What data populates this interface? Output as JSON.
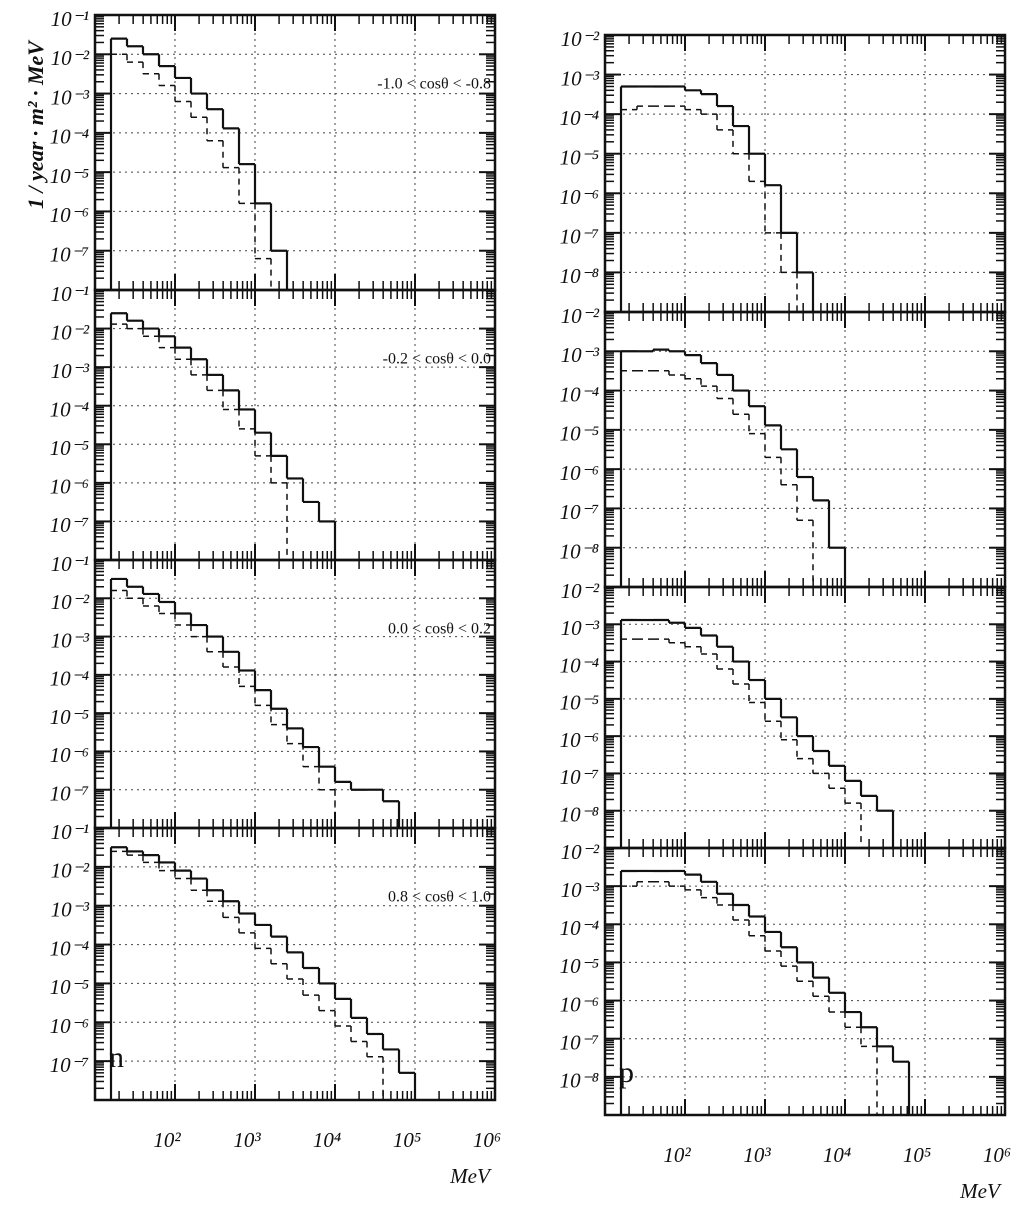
{
  "chart_data": [
    {
      "type": "histogram",
      "ylabel": "1 / year · m² · MeV",
      "annotation": "-1.0 < cosθ < -0.8",
      "log_x": true,
      "log_y": true,
      "grid": true,
      "show_xtick_labels": false,
      "xlim": [
        10,
        1000000
      ],
      "ylim": [
        1e-08,
        0.1
      ],
      "xticks": [
        100,
        1000,
        10000,
        100000,
        1000000
      ],
      "yticks": [
        {
          "value": 0.1,
          "label": "10⁻¹"
        },
        {
          "value": 0.01,
          "label": "10⁻²"
        },
        {
          "value": 0.001,
          "label": "10⁻³"
        },
        {
          "value": 0.0001,
          "label": "10⁻⁴"
        },
        {
          "value": 1e-05,
          "label": "10⁻⁵"
        },
        {
          "value": 1e-06,
          "label": "10⁻⁶"
        },
        {
          "value": 1e-07,
          "label": "10⁻⁷"
        }
      ],
      "bins": [
        15.85,
        25.12,
        39.81,
        63.1,
        100,
        158.5,
        251.2,
        398.1,
        631,
        1000,
        1585,
        2512,
        3981,
        6310,
        10000,
        15850,
        25120,
        39810,
        63100,
        100000
      ],
      "series": [
        {
          "color": "#111111",
          "line_style": "solid",
          "values": [
            0.025,
            0.016,
            0.01,
            0.005,
            0.0025,
            0.001,
            0.0004,
            0.00013,
            1.6e-05,
            1.6e-06,
            1e-07,
            null,
            null,
            null,
            null,
            null,
            null,
            null,
            null
          ]
        },
        {
          "color": "#111111",
          "line_style": "dashed",
          "values": [
            0.01,
            0.0063,
            0.0032,
            0.0016,
            0.00063,
            0.00025,
            6.3e-05,
            1.3e-05,
            1.6e-06,
            6.3e-08,
            null,
            null,
            null,
            null,
            null,
            null,
            null,
            null,
            null
          ]
        }
      ]
    },
    {
      "type": "histogram",
      "annotation": "-0.2 < cosθ < 0.0",
      "log_x": true,
      "log_y": true,
      "grid": true,
      "show_xtick_labels": false,
      "xlim": [
        10,
        1000000
      ],
      "ylim": [
        1e-08,
        0.1
      ],
      "xticks": [
        100,
        1000,
        10000,
        100000,
        1000000
      ],
      "yticks": [
        {
          "value": 0.1,
          "label": "10⁻¹"
        },
        {
          "value": 0.01,
          "label": "10⁻²"
        },
        {
          "value": 0.001,
          "label": "10⁻³"
        },
        {
          "value": 0.0001,
          "label": "10⁻⁴"
        },
        {
          "value": 1e-05,
          "label": "10⁻⁵"
        },
        {
          "value": 1e-06,
          "label": "10⁻⁶"
        },
        {
          "value": 1e-07,
          "label": "10⁻⁷"
        }
      ],
      "bins": [
        15.85,
        25.12,
        39.81,
        63.1,
        100,
        158.5,
        251.2,
        398.1,
        631,
        1000,
        1585,
        2512,
        3981,
        6310,
        10000,
        15850,
        25120,
        39810,
        63100,
        100000
      ],
      "series": [
        {
          "color": "#111111",
          "line_style": "solid",
          "values": [
            0.025,
            0.016,
            0.01,
            0.0063,
            0.0032,
            0.0016,
            0.00063,
            0.00025,
            8e-05,
            2e-05,
            5e-06,
            1.3e-06,
            3.2e-07,
            1e-07,
            null,
            null,
            null,
            null,
            null
          ]
        },
        {
          "color": "#111111",
          "line_style": "dashed",
          "values": [
            0.013,
            0.01,
            0.0063,
            0.0032,
            0.0016,
            0.00063,
            0.00025,
            8e-05,
            2.5e-05,
            5e-06,
            1e-06,
            null,
            null,
            null,
            null,
            null,
            null,
            null,
            null
          ]
        }
      ]
    },
    {
      "type": "histogram",
      "annotation": "0.0 < cosθ < 0.2",
      "log_x": true,
      "log_y": true,
      "grid": true,
      "show_xtick_labels": false,
      "xlim": [
        10,
        1000000
      ],
      "ylim": [
        1e-08,
        0.1
      ],
      "xticks": [
        100,
        1000,
        10000,
        100000,
        1000000
      ],
      "yticks": [
        {
          "value": 0.1,
          "label": "10⁻¹"
        },
        {
          "value": 0.01,
          "label": "10⁻²"
        },
        {
          "value": 0.001,
          "label": "10⁻³"
        },
        {
          "value": 0.0001,
          "label": "10⁻⁴"
        },
        {
          "value": 1e-05,
          "label": "10⁻⁵"
        },
        {
          "value": 1e-06,
          "label": "10⁻⁶"
        },
        {
          "value": 1e-07,
          "label": "10⁻⁷"
        }
      ],
      "bins": [
        15.85,
        25.12,
        39.81,
        63.1,
        100,
        158.5,
        251.2,
        398.1,
        631,
        1000,
        1585,
        2512,
        3981,
        6310,
        10000,
        15850,
        25120,
        39810,
        63100,
        100000
      ],
      "series": [
        {
          "color": "#111111",
          "line_style": "solid",
          "values": [
            0.032,
            0.02,
            0.013,
            0.008,
            0.004,
            0.002,
            0.001,
            0.0004,
            0.00013,
            4e-05,
            1.3e-05,
            4e-06,
            1.3e-06,
            4e-07,
            1.6e-07,
            1e-07,
            1e-07,
            5e-08,
            null
          ]
        },
        {
          "color": "#111111",
          "line_style": "dashed",
          "values": [
            0.016,
            0.01,
            0.0063,
            0.004,
            0.002,
            0.001,
            0.0004,
            0.00016,
            5e-05,
            1.6e-05,
            5e-06,
            1.6e-06,
            4e-07,
            1e-07,
            null,
            null,
            null,
            null,
            null
          ]
        }
      ]
    },
    {
      "type": "histogram",
      "annotation": "0.8 < cosθ < 1.0",
      "panel_label": "n",
      "xlabel": "MeV",
      "log_x": true,
      "log_y": true,
      "grid": true,
      "show_xtick_labels": true,
      "xlim": [
        10,
        1000000
      ],
      "ylim": [
        1e-08,
        0.1
      ],
      "xticks": [
        {
          "value": 100,
          "label": "10²"
        },
        {
          "value": 1000,
          "label": "10³"
        },
        {
          "value": 10000,
          "label": "10⁴"
        },
        {
          "value": 100000,
          "label": "10⁵"
        },
        {
          "value": 1000000,
          "label": "10⁶"
        }
      ],
      "yticks": [
        {
          "value": 0.1,
          "label": "10⁻¹"
        },
        {
          "value": 0.01,
          "label": "10⁻²"
        },
        {
          "value": 0.001,
          "label": "10⁻³"
        },
        {
          "value": 0.0001,
          "label": "10⁻⁴"
        },
        {
          "value": 1e-05,
          "label": "10⁻⁵"
        },
        {
          "value": 1e-06,
          "label": "10⁻⁶"
        },
        {
          "value": 1e-07,
          "label": "10⁻⁷"
        }
      ],
      "bins": [
        15.85,
        25.12,
        39.81,
        63.1,
        100,
        158.5,
        251.2,
        398.1,
        631,
        1000,
        1585,
        2512,
        3981,
        6310,
        10000,
        15850,
        25120,
        39810,
        63100,
        100000
      ],
      "series": [
        {
          "color": "#111111",
          "line_style": "solid",
          "values": [
            0.032,
            0.025,
            0.02,
            0.013,
            0.008,
            0.005,
            0.0025,
            0.0013,
            0.00063,
            0.00032,
            0.00016,
            6.3e-05,
            2.5e-05,
            1e-05,
            4e-06,
            1.3e-06,
            5e-07,
            2e-07,
            5e-08
          ]
        },
        {
          "color": "#111111",
          "line_style": "dashed",
          "values": [
            0.025,
            0.02,
            0.013,
            0.008,
            0.005,
            0.0025,
            0.0013,
            0.0005,
            0.0002,
            8e-05,
            3.2e-05,
            1.3e-05,
            5e-06,
            2e-06,
            8e-07,
            3.2e-07,
            1.3e-07,
            null,
            null
          ]
        }
      ]
    },
    {
      "type": "histogram",
      "log_x": true,
      "log_y": true,
      "grid": true,
      "show_xtick_labels": false,
      "xlim": [
        10,
        1000000
      ],
      "ylim": [
        1e-09,
        0.01
      ],
      "xticks": [
        100,
        1000,
        10000,
        100000,
        1000000
      ],
      "yticks": [
        {
          "value": 0.01,
          "label": "10⁻²"
        },
        {
          "value": 0.001,
          "label": "10⁻³"
        },
        {
          "value": 0.0001,
          "label": "10⁻⁴"
        },
        {
          "value": 1e-05,
          "label": "10⁻⁵"
        },
        {
          "value": 1e-06,
          "label": "10⁻⁶"
        },
        {
          "value": 1e-07,
          "label": "10⁻⁷"
        },
        {
          "value": 1e-08,
          "label": "10⁻⁸"
        }
      ],
      "bins": [
        15.85,
        25.12,
        39.81,
        63.1,
        100,
        158.5,
        251.2,
        398.1,
        631,
        1000,
        1585,
        2512,
        3981,
        6310,
        10000,
        15850,
        25120,
        39810,
        63100,
        100000
      ],
      "series": [
        {
          "color": "#111111",
          "line_style": "solid",
          "values": [
            0.0005,
            0.0005,
            0.0005,
            0.0005,
            0.0004,
            0.00032,
            0.00016,
            5e-05,
            1e-05,
            1.6e-06,
            1e-07,
            1e-08,
            null,
            null,
            null,
            null,
            null,
            null,
            null
          ]
        },
        {
          "color": "#111111",
          "line_style": "dashed",
          "values": [
            0.00013,
            0.00016,
            0.00016,
            0.00016,
            0.00013,
            0.0001,
            4e-05,
            1e-05,
            2e-06,
            1e-07,
            1e-08,
            null,
            null,
            null,
            null,
            null,
            null,
            null,
            null
          ]
        }
      ]
    },
    {
      "type": "histogram",
      "log_x": true,
      "log_y": true,
      "grid": true,
      "show_xtick_labels": false,
      "xlim": [
        10,
        1000000
      ],
      "ylim": [
        1e-09,
        0.01
      ],
      "xticks": [
        100,
        1000,
        10000,
        100000,
        1000000
      ],
      "yticks": [
        {
          "value": 0.01,
          "label": "10⁻²"
        },
        {
          "value": 0.001,
          "label": "10⁻³"
        },
        {
          "value": 0.0001,
          "label": "10⁻⁴"
        },
        {
          "value": 1e-05,
          "label": "10⁻⁵"
        },
        {
          "value": 1e-06,
          "label": "10⁻⁶"
        },
        {
          "value": 1e-07,
          "label": "10⁻⁷"
        },
        {
          "value": 1e-08,
          "label": "10⁻⁸"
        }
      ],
      "bins": [
        15.85,
        25.12,
        39.81,
        63.1,
        100,
        158.5,
        251.2,
        398.1,
        631,
        1000,
        1585,
        2512,
        3981,
        6310,
        10000,
        15850,
        25120,
        39810,
        63100,
        100000
      ],
      "series": [
        {
          "color": "#111111",
          "line_style": "solid",
          "values": [
            0.001,
            0.001,
            0.0011,
            0.001,
            0.0008,
            0.0005,
            0.00025,
            0.0001,
            4e-05,
            1.3e-05,
            3.2e-06,
            6.3e-07,
            1.6e-07,
            1e-08,
            null,
            null,
            null,
            null,
            null
          ]
        },
        {
          "color": "#111111",
          "line_style": "dashed",
          "values": [
            0.00032,
            0.00032,
            0.00032,
            0.00025,
            0.0002,
            0.00013,
            6.3e-05,
            2.5e-05,
            8e-06,
            2e-06,
            4e-07,
            5e-08,
            null,
            null,
            null,
            null,
            null,
            null,
            null
          ]
        }
      ]
    },
    {
      "type": "histogram",
      "log_x": true,
      "log_y": true,
      "grid": true,
      "show_xtick_labels": false,
      "xlim": [
        10,
        1000000
      ],
      "ylim": [
        1e-09,
        0.01
      ],
      "xticks": [
        100,
        1000,
        10000,
        100000,
        1000000
      ],
      "yticks": [
        {
          "value": 0.01,
          "label": "10⁻²"
        },
        {
          "value": 0.001,
          "label": "10⁻³"
        },
        {
          "value": 0.0001,
          "label": "10⁻⁴"
        },
        {
          "value": 1e-05,
          "label": "10⁻⁵"
        },
        {
          "value": 1e-06,
          "label": "10⁻⁶"
        },
        {
          "value": 1e-07,
          "label": "10⁻⁷"
        },
        {
          "value": 1e-08,
          "label": "10⁻⁸"
        }
      ],
      "bins": [
        15.85,
        25.12,
        39.81,
        63.1,
        100,
        158.5,
        251.2,
        398.1,
        631,
        1000,
        1585,
        2512,
        3981,
        6310,
        10000,
        15850,
        25120,
        39810,
        63100,
        100000
      ],
      "series": [
        {
          "color": "#111111",
          "line_style": "solid",
          "values": [
            0.0013,
            0.0013,
            0.0013,
            0.0011,
            0.0008,
            0.0005,
            0.00025,
            0.0001,
            3.2e-05,
            1e-05,
            3.2e-06,
            1e-06,
            4e-07,
            1.6e-07,
            6.3e-08,
            2.5e-08,
            1e-08,
            null,
            null
          ]
        },
        {
          "color": "#111111",
          "line_style": "dashed",
          "values": [
            0.0004,
            0.0004,
            0.0004,
            0.00032,
            0.00025,
            0.00016,
            6.3e-05,
            2.5e-05,
            8e-06,
            2.5e-06,
            8e-07,
            2.5e-07,
            1e-07,
            4e-08,
            1.6e-08,
            null,
            null,
            null,
            null
          ]
        }
      ]
    },
    {
      "type": "histogram",
      "panel_label": "p",
      "xlabel": "MeV",
      "log_x": true,
      "log_y": true,
      "grid": true,
      "show_xtick_labels": true,
      "xlim": [
        10,
        1000000
      ],
      "ylim": [
        1e-09,
        0.01
      ],
      "xticks": [
        {
          "value": 100,
          "label": "10²"
        },
        {
          "value": 1000,
          "label": "10³"
        },
        {
          "value": 10000,
          "label": "10⁴"
        },
        {
          "value": 100000,
          "label": "10⁵"
        },
        {
          "value": 1000000,
          "label": "10⁶"
        }
      ],
      "yticks": [
        {
          "value": 0.01,
          "label": "10⁻²"
        },
        {
          "value": 0.001,
          "label": "10⁻³"
        },
        {
          "value": 0.0001,
          "label": "10⁻⁴"
        },
        {
          "value": 1e-05,
          "label": "10⁻⁵"
        },
        {
          "value": 1e-06,
          "label": "10⁻⁶"
        },
        {
          "value": 1e-07,
          "label": "10⁻⁷"
        },
        {
          "value": 1e-08,
          "label": "10⁻⁸"
        }
      ],
      "bins": [
        15.85,
        25.12,
        39.81,
        63.1,
        100,
        158.5,
        251.2,
        398.1,
        631,
        1000,
        1585,
        2512,
        3981,
        6310,
        10000,
        15850,
        25120,
        39810,
        63100,
        100000
      ],
      "series": [
        {
          "color": "#111111",
          "line_style": "solid",
          "values": [
            0.0025,
            0.0025,
            0.0025,
            0.0025,
            0.002,
            0.0013,
            0.00063,
            0.00032,
            0.00016,
            6.3e-05,
            2.5e-05,
            1e-05,
            4e-06,
            1.6e-06,
            5e-07,
            2e-07,
            6.3e-08,
            2.5e-08,
            null
          ]
        },
        {
          "color": "#111111",
          "line_style": "dashed",
          "values": [
            0.001,
            0.0013,
            0.0013,
            0.001,
            0.0008,
            0.0005,
            0.00032,
            0.00013,
            5e-05,
            2e-05,
            8e-06,
            3.2e-06,
            1.3e-06,
            5e-07,
            2e-07,
            6.3e-08,
            null,
            null,
            null
          ]
        }
      ]
    }
  ]
}
